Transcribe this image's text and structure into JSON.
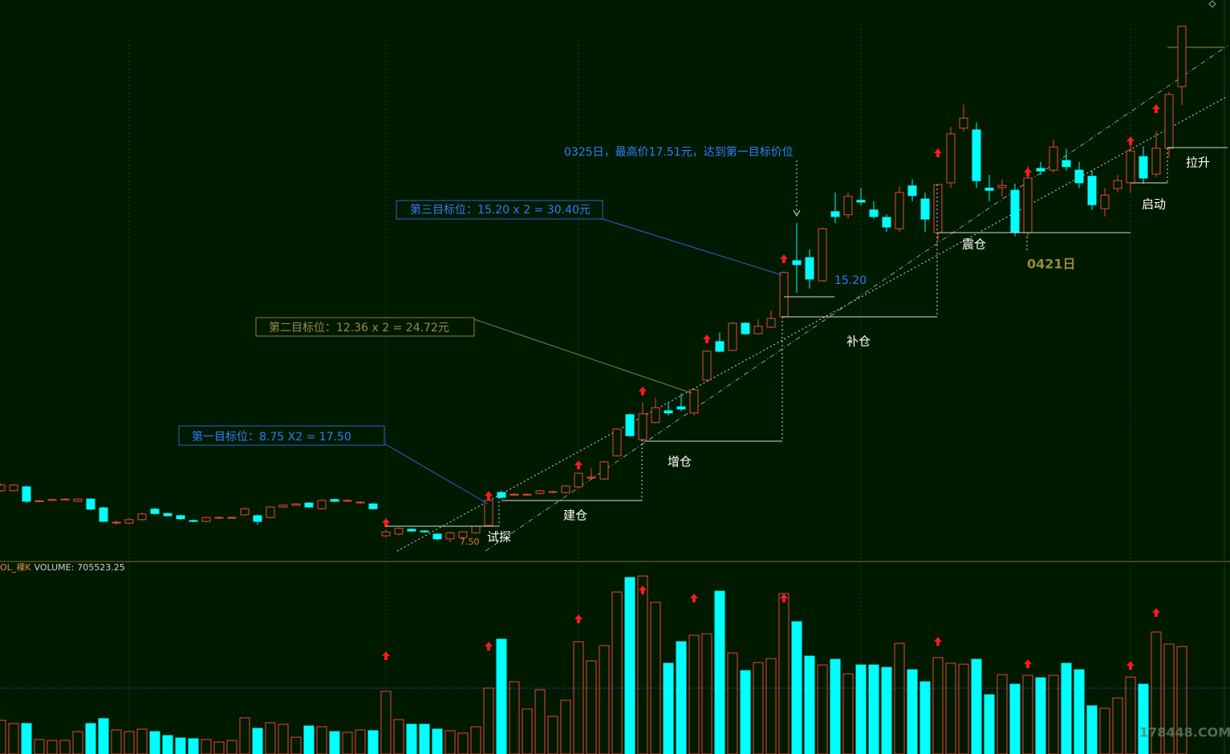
{
  "chart_data": {
    "type": "candlestick",
    "ylim": [
      7.1,
      19.9
    ],
    "up_color": "#e8453c",
    "down_color": "#00ffff",
    "candles": [
      [
        8.68,
        8.85,
        8.65,
        8.81
      ],
      [
        8.68,
        8.84,
        8.66,
        8.81
      ],
      [
        8.77,
        8.8,
        8.4,
        8.44
      ],
      [
        8.44,
        8.47,
        8.42,
        8.45
      ],
      [
        8.46,
        8.5,
        8.45,
        8.48
      ],
      [
        8.48,
        8.51,
        8.46,
        8.49
      ],
      [
        8.44,
        8.5,
        8.42,
        8.49
      ],
      [
        8.49,
        8.51,
        8.24,
        8.26
      ],
      [
        8.29,
        8.31,
        7.96,
        7.98
      ],
      [
        7.96,
        8.0,
        7.9,
        7.96
      ],
      [
        7.94,
        8.05,
        7.92,
        8.02
      ],
      [
        8.02,
        8.18,
        8.0,
        8.15
      ],
      [
        8.26,
        8.3,
        8.14,
        8.16
      ],
      [
        8.16,
        8.18,
        8.09,
        8.11
      ],
      [
        8.11,
        8.13,
        8.02,
        8.04
      ],
      [
        8.0,
        8.02,
        7.96,
        7.98
      ],
      [
        7.98,
        8.09,
        7.96,
        8.07
      ],
      [
        8.07,
        8.09,
        8.05,
        8.07
      ],
      [
        8.07,
        8.09,
        8.04,
        8.07
      ],
      [
        8.13,
        8.3,
        8.11,
        8.27
      ],
      [
        8.11,
        8.14,
        7.9,
        7.98
      ],
      [
        8.07,
        8.33,
        8.05,
        8.31
      ],
      [
        8.31,
        8.37,
        8.29,
        8.35
      ],
      [
        8.35,
        8.4,
        8.33,
        8.38
      ],
      [
        8.4,
        8.42,
        8.29,
        8.31
      ],
      [
        8.27,
        8.48,
        8.25,
        8.46
      ],
      [
        8.48,
        8.5,
        8.42,
        8.44
      ],
      [
        8.46,
        8.49,
        8.43,
        8.46
      ],
      [
        8.42,
        8.45,
        8.38,
        8.42
      ],
      [
        8.38,
        8.4,
        8.25,
        8.27
      ],
      [
        7.65,
        7.78,
        7.62,
        7.74
      ],
      [
        7.69,
        7.84,
        7.66,
        7.82
      ],
      [
        7.8,
        7.82,
        7.74,
        7.76
      ],
      [
        7.76,
        7.78,
        7.72,
        7.74
      ],
      [
        7.69,
        7.71,
        7.55,
        7.58
      ],
      [
        7.58,
        7.74,
        7.5,
        7.72
      ],
      [
        7.61,
        7.76,
        7.59,
        7.74
      ],
      [
        7.72,
        7.89,
        7.7,
        7.87
      ],
      [
        7.89,
        8.48,
        7.87,
        8.46
      ],
      [
        8.64,
        8.68,
        8.5,
        8.53
      ],
      [
        8.6,
        8.63,
        8.57,
        8.6
      ],
      [
        8.6,
        8.63,
        8.57,
        8.6
      ],
      [
        8.62,
        8.7,
        8.6,
        8.68
      ],
      [
        8.66,
        8.69,
        8.63,
        8.66
      ],
      [
        8.64,
        8.81,
        8.62,
        8.79
      ],
      [
        8.77,
        9.1,
        8.75,
        9.08
      ],
      [
        8.99,
        9.2,
        8.95,
        8.99
      ],
      [
        8.95,
        9.36,
        8.93,
        9.34
      ],
      [
        9.48,
        10.11,
        9.46,
        10.09
      ],
      [
        10.42,
        10.44,
        9.92,
        9.94
      ],
      [
        9.85,
        10.7,
        9.8,
        10.44
      ],
      [
        10.24,
        10.8,
        10.22,
        10.58
      ],
      [
        10.51,
        10.7,
        10.4,
        10.46
      ],
      [
        10.6,
        10.9,
        10.5,
        10.55
      ],
      [
        10.46,
        11.01,
        10.4,
        10.99
      ],
      [
        11.21,
        11.89,
        11.19,
        11.87
      ],
      [
        12.09,
        12.3,
        11.85,
        11.87
      ],
      [
        11.89,
        12.53,
        11.87,
        12.51
      ],
      [
        12.51,
        12.53,
        12.25,
        12.27
      ],
      [
        12.27,
        12.6,
        12.25,
        12.44
      ],
      [
        12.42,
        12.8,
        12.4,
        12.62
      ],
      [
        12.66,
        13.7,
        12.64,
        13.67
      ],
      [
        13.94,
        14.8,
        13.21,
        13.85
      ],
      [
        14.01,
        14.2,
        13.3,
        13.52
      ],
      [
        13.48,
        14.7,
        13.46,
        14.67
      ],
      [
        15.06,
        15.5,
        14.8,
        14.95
      ],
      [
        14.99,
        15.5,
        14.9,
        15.41
      ],
      [
        15.32,
        15.6,
        15.2,
        15.28
      ],
      [
        15.1,
        15.3,
        14.9,
        14.95
      ],
      [
        14.93,
        15.0,
        14.6,
        14.71
      ],
      [
        14.67,
        15.65,
        14.6,
        15.5
      ],
      [
        15.65,
        15.8,
        15.3,
        15.43
      ],
      [
        15.35,
        15.5,
        14.6,
        14.89
      ],
      [
        14.58,
        15.7,
        14.4,
        15.68
      ],
      [
        15.72,
        17.0,
        15.6,
        16.84
      ],
      [
        16.97,
        17.51,
        16.9,
        17.2
      ],
      [
        16.93,
        17.1,
        15.6,
        15.77
      ],
      [
        15.6,
        15.9,
        15.3,
        15.55
      ],
      [
        15.61,
        15.8,
        15.4,
        15.66
      ],
      [
        15.55,
        15.7,
        14.5,
        14.58
      ],
      [
        14.58,
        16.1,
        14.5,
        15.83
      ],
      [
        16.05,
        16.2,
        15.9,
        15.99
      ],
      [
        16.01,
        16.7,
        15.95,
        16.54
      ],
      [
        16.23,
        16.5,
        16.0,
        16.09
      ],
      [
        16.01,
        16.2,
        15.6,
        15.72
      ],
      [
        15.87,
        16.0,
        15.1,
        15.22
      ],
      [
        15.13,
        15.6,
        14.95,
        15.44
      ],
      [
        15.59,
        15.9,
        15.5,
        15.77
      ],
      [
        15.72,
        16.7,
        15.5,
        16.45
      ],
      [
        16.32,
        16.55,
        15.7,
        15.83
      ],
      [
        15.92,
        16.9,
        15.85,
        16.51
      ],
      [
        16.51,
        17.8,
        16.3,
        17.74
      ],
      [
        17.92,
        19.3,
        17.5,
        19.3
      ]
    ],
    "volume": {
      "name": "OL_裸K",
      "label": "VOLUME:",
      "ylim": [
        0,
        1200000
      ],
      "values": [
        221000,
        200000,
        200000,
        95000,
        89000,
        89000,
        147000,
        200000,
        232000,
        158000,
        147000,
        163000,
        147000,
        121000,
        105000,
        100000,
        95000,
        79000,
        89000,
        237000,
        168000,
        205000,
        195000,
        110000,
        184000,
        179000,
        147000,
        142000,
        158000,
        153000,
        411000,
        226000,
        195000,
        195000,
        163000,
        153000,
        137000,
        179000,
        432000,
        753000,
        474000,
        295000,
        421000,
        247000,
        353000,
        737000,
        611000,
        711000,
        1063000,
        1158000,
        1168000,
        995000,
        595000,
        737000,
        779000,
        789000,
        1068000,
        663000,
        547000,
        600000,
        626000,
        1053000,
        868000,
        642000,
        584000,
        621000,
        526000,
        584000,
        584000,
        568000,
        726000,
        553000,
        474000,
        632000,
        595000,
        589000,
        621000,
        389000,
        521000,
        458000,
        516000,
        500000,
        516000,
        595000,
        553000,
        316000,
        300000,
        368000,
        505000,
        458000,
        800000,
        721000,
        705523.25
      ]
    },
    "annotations": {
      "target1": "第一目标位：8.75 X2 = 17.50",
      "target2": "第二目标位：12.36 x 2 = 24.72元",
      "target3": "第三目标位：15.20 x 2 = 30.40元",
      "high_note": "0325日，最高价17.51元，达到第一目标价位",
      "price_1520": "15.20",
      "price_750": "7.50",
      "date_0421": "0421日",
      "stage_probe": "试探",
      "stage_build": "建仓",
      "stage_add": "增仓",
      "stage_refill": "补仓",
      "stage_shake": "震仓",
      "stage_start": "启动",
      "stage_rise": "拉升"
    }
  },
  "watermark": "178448.COM"
}
